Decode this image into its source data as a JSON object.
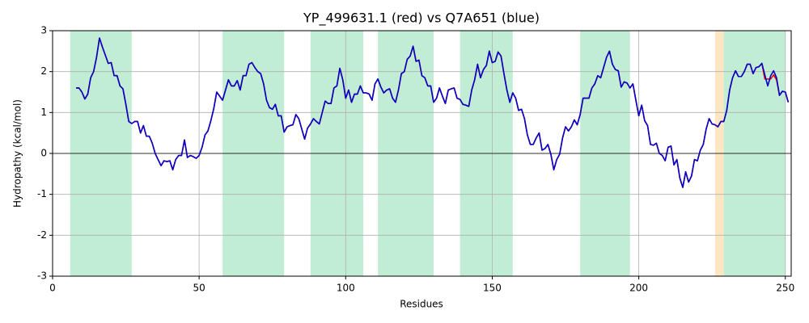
{
  "chart_data": {
    "type": "line",
    "title": "YP_499631.1 (red) vs Q7A651 (blue)",
    "xlabel": "Residues",
    "ylabel": "Hydropathy (kcal/mol)",
    "xlim": [
      0,
      252
    ],
    "ylim": [
      -3,
      3
    ],
    "xticks": [
      0,
      50,
      100,
      150,
      200,
      250
    ],
    "yticks": [
      -3,
      -2,
      -1,
      0,
      1,
      2,
      3
    ],
    "grid": true,
    "hline": 0,
    "regions": [
      {
        "start": 6,
        "end": 27,
        "color": "#c0edd4"
      },
      {
        "start": 58,
        "end": 79,
        "color": "#c0edd4"
      },
      {
        "start": 88,
        "end": 106,
        "color": "#c0edd4"
      },
      {
        "start": 111,
        "end": 130,
        "color": "#c0edd4"
      },
      {
        "start": 139,
        "end": 157,
        "color": "#c0edd4"
      },
      {
        "start": 180,
        "end": 197,
        "color": "#c0edd4"
      },
      {
        "start": 226,
        "end": 229,
        "color": "#fde7c3"
      },
      {
        "start": 229,
        "end": 250,
        "color": "#c0edd4"
      }
    ],
    "x": [
      8,
      9,
      10,
      11,
      12,
      13,
      14,
      15,
      16,
      17,
      18,
      19,
      20,
      21,
      22,
      23,
      24,
      25,
      26,
      27,
      28,
      29,
      30,
      31,
      32,
      33,
      34,
      35,
      36,
      37,
      38,
      39,
      40,
      41,
      42,
      43,
      44,
      45,
      46,
      47,
      48,
      49,
      50,
      51,
      52,
      53,
      54,
      55,
      56,
      57,
      58,
      59,
      60,
      61,
      62,
      63,
      64,
      65,
      66,
      67,
      68,
      69,
      70,
      71,
      72,
      73,
      74,
      75,
      76,
      77,
      78,
      79,
      80,
      81,
      82,
      83,
      84,
      85,
      86,
      87,
      88,
      89,
      90,
      91,
      92,
      93,
      94,
      95,
      96,
      97,
      98,
      99,
      100,
      101,
      102,
      103,
      104,
      105,
      106,
      107,
      108,
      109,
      110,
      111,
      112,
      113,
      114,
      115,
      116,
      117,
      118,
      119,
      120,
      121,
      122,
      123,
      124,
      125,
      126,
      127,
      128,
      129,
      130,
      131,
      132,
      133,
      134,
      135,
      136,
      137,
      138,
      139,
      140,
      141,
      142,
      143,
      144,
      145,
      146,
      147,
      148,
      149,
      150,
      151,
      152,
      153,
      154,
      155,
      156,
      157,
      158,
      159,
      160,
      161,
      162,
      163,
      164,
      165,
      166,
      167,
      168,
      169,
      170,
      171,
      172,
      173,
      174,
      175,
      176,
      177,
      178,
      179,
      180,
      181,
      182,
      183,
      184,
      185,
      186,
      187,
      188,
      189,
      190,
      191,
      192,
      193,
      194,
      195,
      196,
      197,
      198,
      199,
      200,
      201,
      202,
      203,
      204,
      205,
      206,
      207,
      208,
      209,
      210,
      211,
      212,
      213,
      214,
      215,
      216,
      217,
      218,
      219,
      220,
      221,
      222,
      223,
      224,
      225,
      226,
      227,
      228,
      229,
      230,
      231,
      232,
      233,
      234,
      235,
      236,
      237,
      238,
      239,
      240,
      241,
      242,
      243,
      244,
      245,
      246,
      247,
      248,
      249,
      250,
      251
    ],
    "series": [
      {
        "name": "YP_499631.1",
        "color": "#ff0000",
        "values": [
          1.6,
          1.6,
          1.5,
          1.33,
          1.45,
          1.85,
          2.0,
          2.35,
          2.82,
          2.6,
          2.4,
          2.2,
          2.22,
          1.9,
          1.9,
          1.65,
          1.58,
          1.2,
          0.78,
          0.73,
          0.78,
          0.78,
          0.5,
          0.68,
          0.42,
          0.42,
          0.25,
          0.0,
          -0.15,
          -0.3,
          -0.18,
          -0.2,
          -0.18,
          -0.4,
          -0.15,
          -0.05,
          -0.05,
          0.33,
          -0.1,
          -0.05,
          -0.08,
          -0.12,
          -0.05,
          0.15,
          0.45,
          0.55,
          0.8,
          1.1,
          1.5,
          1.4,
          1.3,
          1.55,
          1.8,
          1.65,
          1.65,
          1.78,
          1.55,
          1.9,
          1.9,
          2.18,
          2.22,
          2.1,
          2.0,
          1.95,
          1.7,
          1.3,
          1.12,
          1.08,
          1.2,
          0.92,
          0.92,
          0.52,
          0.65,
          0.68,
          0.7,
          0.95,
          0.85,
          0.6,
          0.35,
          0.62,
          0.72,
          0.85,
          0.78,
          0.72,
          1.0,
          1.28,
          1.22,
          1.22,
          1.6,
          1.65,
          2.08,
          1.8,
          1.35,
          1.55,
          1.25,
          1.45,
          1.45,
          1.65,
          1.48,
          1.48,
          1.45,
          1.3,
          1.7,
          1.82,
          1.62,
          1.48,
          1.55,
          1.58,
          1.35,
          1.25,
          1.55,
          1.95,
          2.0,
          2.3,
          2.38,
          2.62,
          2.25,
          2.28,
          1.9,
          1.85,
          1.65,
          1.65,
          1.25,
          1.35,
          1.6,
          1.4,
          1.22,
          1.55,
          1.58,
          1.6,
          1.35,
          1.32,
          1.2,
          1.18,
          1.15,
          1.55,
          1.8,
          2.18,
          1.85,
          2.05,
          2.15,
          2.5,
          2.22,
          2.25,
          2.48,
          2.38,
          1.95,
          1.55,
          1.25,
          1.48,
          1.35,
          1.05,
          1.08,
          0.85,
          0.45,
          0.22,
          0.22,
          0.38,
          0.5,
          0.08,
          0.12,
          0.22,
          -0.02,
          -0.4,
          -0.15,
          -0.02,
          0.38,
          0.65,
          0.55,
          0.65,
          0.82,
          0.7,
          0.95,
          1.35,
          1.35,
          1.35,
          1.6,
          1.7,
          1.9,
          1.85,
          2.1,
          2.35,
          2.5,
          2.18,
          2.05,
          2.02,
          1.62,
          1.75,
          1.72,
          1.6,
          1.7,
          1.3,
          0.92,
          1.18,
          0.8,
          0.68,
          0.22,
          0.2,
          0.25,
          0.0,
          -0.05,
          -0.18,
          0.15,
          0.18,
          -0.28,
          -0.15,
          -0.6,
          -0.83,
          -0.45,
          -0.7,
          -0.55,
          -0.15,
          -0.18,
          0.08,
          0.22,
          0.6,
          0.85,
          0.72,
          0.7,
          0.65,
          0.78,
          0.78,
          1.05,
          1.55,
          1.85,
          2.02,
          1.88,
          1.88,
          2.0,
          2.18,
          2.18,
          1.95,
          2.1,
          2.12,
          2.2,
          1.82,
          1.82,
          1.82,
          1.92,
          1.8,
          1.42,
          1.52,
          1.5,
          1.25
        ]
      },
      {
        "name": "Q7A651",
        "color": "#0000cc",
        "values": [
          1.6,
          1.6,
          1.5,
          1.33,
          1.45,
          1.85,
          2.0,
          2.35,
          2.82,
          2.6,
          2.4,
          2.2,
          2.22,
          1.9,
          1.9,
          1.65,
          1.58,
          1.2,
          0.78,
          0.73,
          0.78,
          0.78,
          0.5,
          0.68,
          0.42,
          0.42,
          0.25,
          0.0,
          -0.15,
          -0.3,
          -0.18,
          -0.2,
          -0.18,
          -0.4,
          -0.15,
          -0.05,
          -0.05,
          0.33,
          -0.1,
          -0.05,
          -0.08,
          -0.12,
          -0.05,
          0.15,
          0.45,
          0.55,
          0.8,
          1.1,
          1.5,
          1.4,
          1.3,
          1.55,
          1.8,
          1.65,
          1.65,
          1.78,
          1.55,
          1.9,
          1.9,
          2.18,
          2.22,
          2.1,
          2.0,
          1.95,
          1.7,
          1.3,
          1.12,
          1.08,
          1.2,
          0.92,
          0.92,
          0.52,
          0.65,
          0.68,
          0.7,
          0.95,
          0.85,
          0.6,
          0.35,
          0.62,
          0.72,
          0.85,
          0.78,
          0.72,
          1.0,
          1.28,
          1.22,
          1.22,
          1.6,
          1.65,
          2.08,
          1.8,
          1.35,
          1.55,
          1.25,
          1.45,
          1.45,
          1.65,
          1.48,
          1.48,
          1.45,
          1.3,
          1.7,
          1.82,
          1.62,
          1.48,
          1.55,
          1.58,
          1.35,
          1.25,
          1.55,
          1.95,
          2.0,
          2.3,
          2.38,
          2.62,
          2.25,
          2.28,
          1.9,
          1.85,
          1.65,
          1.65,
          1.25,
          1.35,
          1.6,
          1.4,
          1.22,
          1.55,
          1.58,
          1.6,
          1.35,
          1.32,
          1.2,
          1.18,
          1.15,
          1.55,
          1.8,
          2.18,
          1.85,
          2.05,
          2.15,
          2.5,
          2.22,
          2.25,
          2.48,
          2.38,
          1.95,
          1.55,
          1.25,
          1.48,
          1.35,
          1.05,
          1.08,
          0.85,
          0.45,
          0.22,
          0.22,
          0.38,
          0.5,
          0.08,
          0.12,
          0.22,
          -0.02,
          -0.4,
          -0.15,
          -0.02,
          0.38,
          0.65,
          0.55,
          0.65,
          0.82,
          0.7,
          0.95,
          1.35,
          1.35,
          1.35,
          1.6,
          1.7,
          1.9,
          1.85,
          2.1,
          2.35,
          2.5,
          2.18,
          2.05,
          2.02,
          1.62,
          1.75,
          1.72,
          1.6,
          1.7,
          1.3,
          0.92,
          1.18,
          0.8,
          0.68,
          0.22,
          0.2,
          0.25,
          0.0,
          -0.05,
          -0.18,
          0.15,
          0.18,
          -0.28,
          -0.15,
          -0.6,
          -0.83,
          -0.45,
          -0.7,
          -0.55,
          -0.15,
          -0.18,
          0.08,
          0.22,
          0.6,
          0.85,
          0.72,
          0.7,
          0.65,
          0.78,
          0.78,
          1.05,
          1.55,
          1.85,
          2.02,
          1.88,
          1.88,
          2.0,
          2.18,
          2.18,
          1.95,
          2.1,
          2.12,
          2.2,
          1.92,
          1.65,
          1.9,
          2.02,
          1.85,
          1.42,
          1.52,
          1.5,
          1.25
        ]
      }
    ]
  }
}
